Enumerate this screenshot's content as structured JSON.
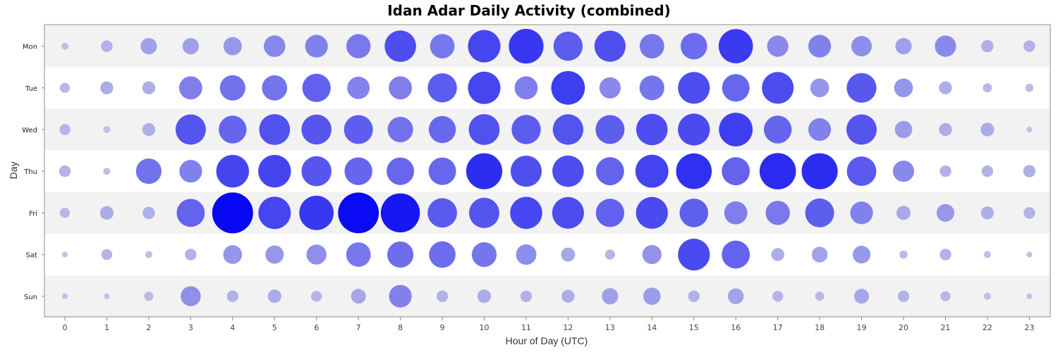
{
  "chart_data": {
    "type": "scatter",
    "title": "Idan Adar Daily Activity (combined)",
    "xlabel": "Hour of Day (UTC)",
    "ylabel": "Day",
    "x": [
      0,
      1,
      2,
      3,
      4,
      5,
      6,
      7,
      8,
      9,
      10,
      11,
      12,
      13,
      14,
      15,
      16,
      17,
      18,
      19,
      20,
      21,
      22,
      23
    ],
    "days": [
      "Mon",
      "Tue",
      "Wed",
      "Thu",
      "Fri",
      "Sat",
      "Sun"
    ],
    "value_scale": "relative intensity 0-1 (size and color of bubbles)",
    "grid": "alternating row bands",
    "colors": {
      "low": "#c8c8e6",
      "high": "#0808f5",
      "band": "#f2f2f2",
      "frame": "#888888"
    },
    "series": [
      {
        "day": "Mon",
        "values": [
          0.03,
          0.08,
          0.16,
          0.16,
          0.2,
          0.28,
          0.31,
          0.35,
          0.59,
          0.36,
          0.63,
          0.72,
          0.51,
          0.58,
          0.36,
          0.42,
          0.7,
          0.27,
          0.31,
          0.25,
          0.16,
          0.27,
          0.09,
          0.08
        ]
      },
      {
        "day": "Tue",
        "values": [
          0.06,
          0.1,
          0.1,
          0.32,
          0.39,
          0.38,
          0.48,
          0.3,
          0.32,
          0.51,
          0.63,
          0.32,
          0.68,
          0.27,
          0.37,
          0.6,
          0.45,
          0.6,
          0.21,
          0.53,
          0.21,
          0.1,
          0.05,
          0.04
        ]
      },
      {
        "day": "Wed",
        "values": [
          0.07,
          0.03,
          0.1,
          0.55,
          0.46,
          0.57,
          0.54,
          0.5,
          0.39,
          0.44,
          0.57,
          0.51,
          0.56,
          0.5,
          0.59,
          0.61,
          0.68,
          0.46,
          0.31,
          0.55,
          0.18,
          0.1,
          0.11,
          0.02
        ]
      },
      {
        "day": "Thu",
        "values": [
          0.08,
          0.03,
          0.39,
          0.31,
          0.64,
          0.64,
          0.54,
          0.46,
          0.45,
          0.45,
          0.78,
          0.58,
          0.59,
          0.47,
          0.65,
          0.76,
          0.47,
          0.79,
          0.78,
          0.52,
          0.27,
          0.08,
          0.08,
          0.09
        ]
      },
      {
        "day": "Fri",
        "values": [
          0.06,
          0.11,
          0.09,
          0.47,
          1.0,
          0.63,
          0.71,
          0.99,
          0.91,
          0.52,
          0.55,
          0.62,
          0.6,
          0.48,
          0.61,
          0.49,
          0.32,
          0.35,
          0.5,
          0.31,
          0.12,
          0.19,
          0.1,
          0.08
        ]
      },
      {
        "day": "Sat",
        "values": [
          0.02,
          0.07,
          0.03,
          0.08,
          0.21,
          0.2,
          0.24,
          0.36,
          0.41,
          0.42,
          0.37,
          0.25,
          0.12,
          0.06,
          0.22,
          0.61,
          0.47,
          0.1,
          0.15,
          0.19,
          0.04,
          0.08,
          0.03,
          0.02
        ]
      },
      {
        "day": "Sun",
        "values": [
          0.02,
          0.02,
          0.05,
          0.24,
          0.08,
          0.11,
          0.07,
          0.13,
          0.31,
          0.08,
          0.11,
          0.08,
          0.1,
          0.16,
          0.18,
          0.08,
          0.15,
          0.07,
          0.05,
          0.13,
          0.08,
          0.06,
          0.03,
          0.02
        ]
      }
    ]
  }
}
